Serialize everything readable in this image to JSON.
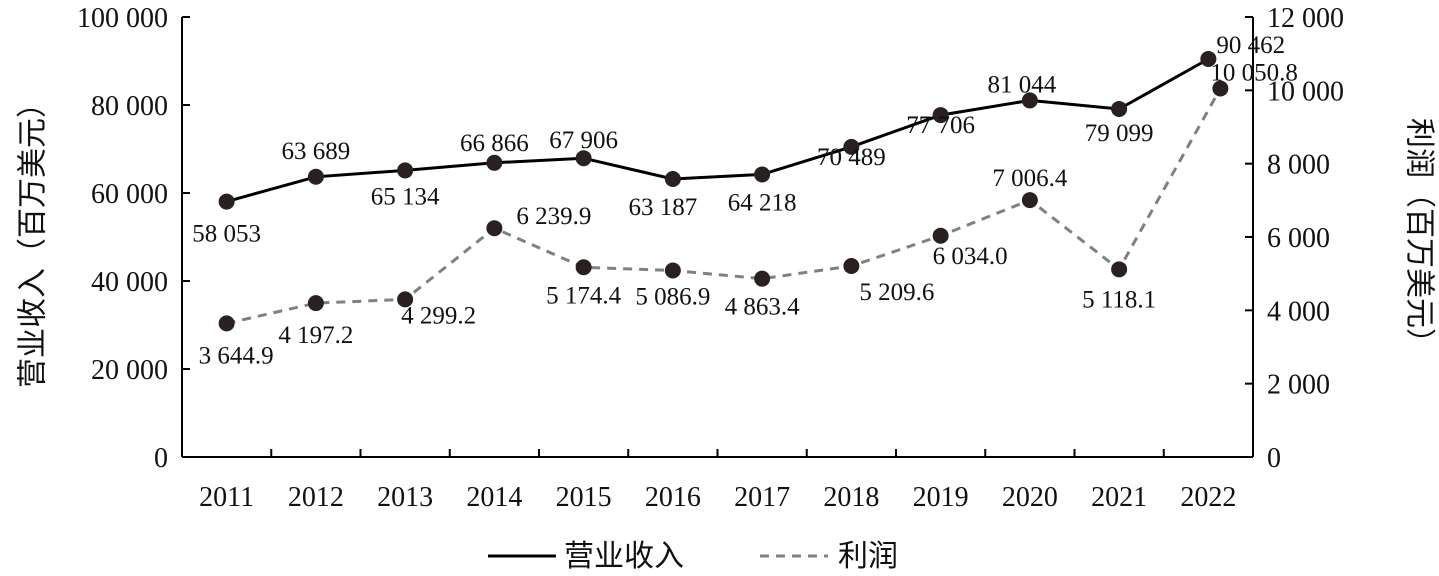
{
  "chart_data": {
    "type": "line",
    "categories": [
      "2011",
      "2012",
      "2013",
      "2014",
      "2015",
      "2016",
      "2017",
      "2018",
      "2019",
      "2020",
      "2021",
      "2022"
    ],
    "series": [
      {
        "name": "营业收入",
        "axis": "left",
        "style": "solid",
        "color": "#000000",
        "values": [
          58053,
          63689,
          65134,
          66866,
          67906,
          63187,
          64218,
          70489,
          77706,
          81044,
          79099,
          90462
        ],
        "labels": [
          "58 053",
          "63 689",
          "65 134",
          "66 866",
          "67 906",
          "63 187",
          "64 218",
          "70 489",
          "77 706",
          "81 044",
          "79 099",
          "90 462"
        ]
      },
      {
        "name": "利润",
        "axis": "right",
        "style": "dashed",
        "color": "#808080",
        "values": [
          3644.9,
          4197.2,
          4299.2,
          6239.9,
          5174.4,
          5086.9,
          4863.4,
          5209.6,
          6034.0,
          7006.4,
          5118.1,
          10050.8
        ],
        "labels": [
          "3 644.9",
          "4 197.2",
          "4 299.2",
          "6 239.9",
          "5 174.4",
          "5 086.9",
          "4 863.4",
          "5 209.6",
          "6 034.0",
          "7 006.4",
          "5 118.1",
          "10 050.8"
        ]
      }
    ],
    "ylabel": "营业收入（百万美元）",
    "y2label": "利润（百万美元）",
    "ylim": [
      0,
      100000
    ],
    "y2lim": [
      0,
      12000
    ],
    "yticks": [
      0,
      20000,
      40000,
      60000,
      80000,
      100000
    ],
    "yticklabels": [
      "0",
      "20 000",
      "40 000",
      "60 000",
      "80 000",
      "100 000"
    ],
    "y2ticks": [
      0,
      2000,
      4000,
      6000,
      8000,
      10000,
      12000
    ],
    "y2ticklabels": [
      "0",
      "2 000",
      "4 000",
      "6 000",
      "8 000",
      "10 000",
      "12 000"
    ],
    "marker_color": "#2b2020",
    "grid": false,
    "legend": "bottom"
  }
}
